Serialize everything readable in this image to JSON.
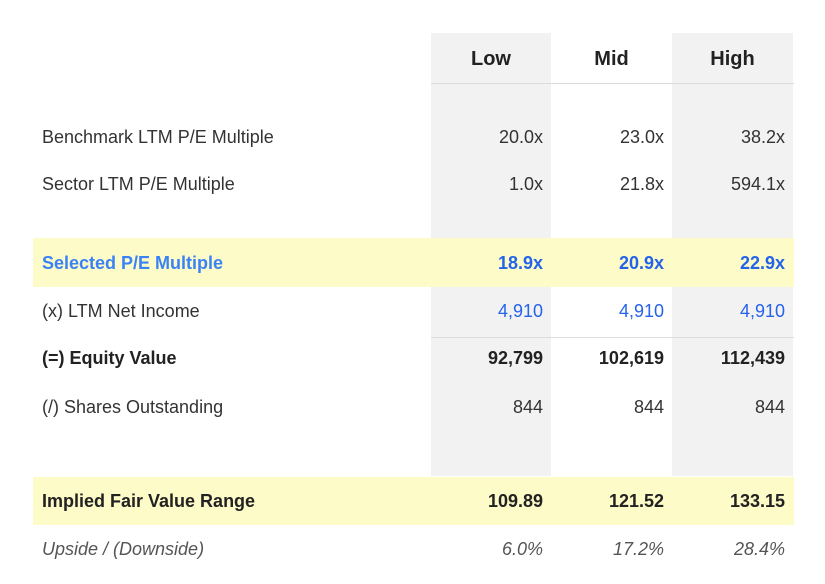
{
  "columns": [
    "Low",
    "Mid",
    "High"
  ],
  "rows": {
    "benchmark": {
      "label": "Benchmark LTM P/E Multiple",
      "values": [
        "20.0x",
        "23.0x",
        "38.2x"
      ]
    },
    "sector": {
      "label": "Sector LTM P/E Multiple",
      "values": [
        "1.0x",
        "21.8x",
        "594.1x"
      ]
    },
    "selected": {
      "label": "Selected P/E Multiple",
      "values": [
        "18.9x",
        "20.9x",
        "22.9x"
      ]
    },
    "net_income": {
      "label": "(x) LTM Net Income",
      "values": [
        "4,910",
        "4,910",
        "4,910"
      ]
    },
    "equity": {
      "label": "(=) Equity Value",
      "values": [
        "92,799",
        "102,619",
        "112,439"
      ]
    },
    "shares": {
      "label": "(/) Shares Outstanding",
      "values": [
        "844",
        "844",
        "844"
      ]
    },
    "implied": {
      "label": "Implied Fair Value Range",
      "values": [
        "109.89",
        "121.52",
        "133.15"
      ]
    },
    "upside": {
      "label": "Upside / (Downside)",
      "values": [
        "6.0%",
        "17.2%",
        "28.4%"
      ]
    }
  },
  "colors": {
    "highlight_band": "#fdfbc7",
    "column_shade": "#f2f2f2",
    "accent_blue": "#2563eb",
    "label_blue": "#3b82f6"
  }
}
